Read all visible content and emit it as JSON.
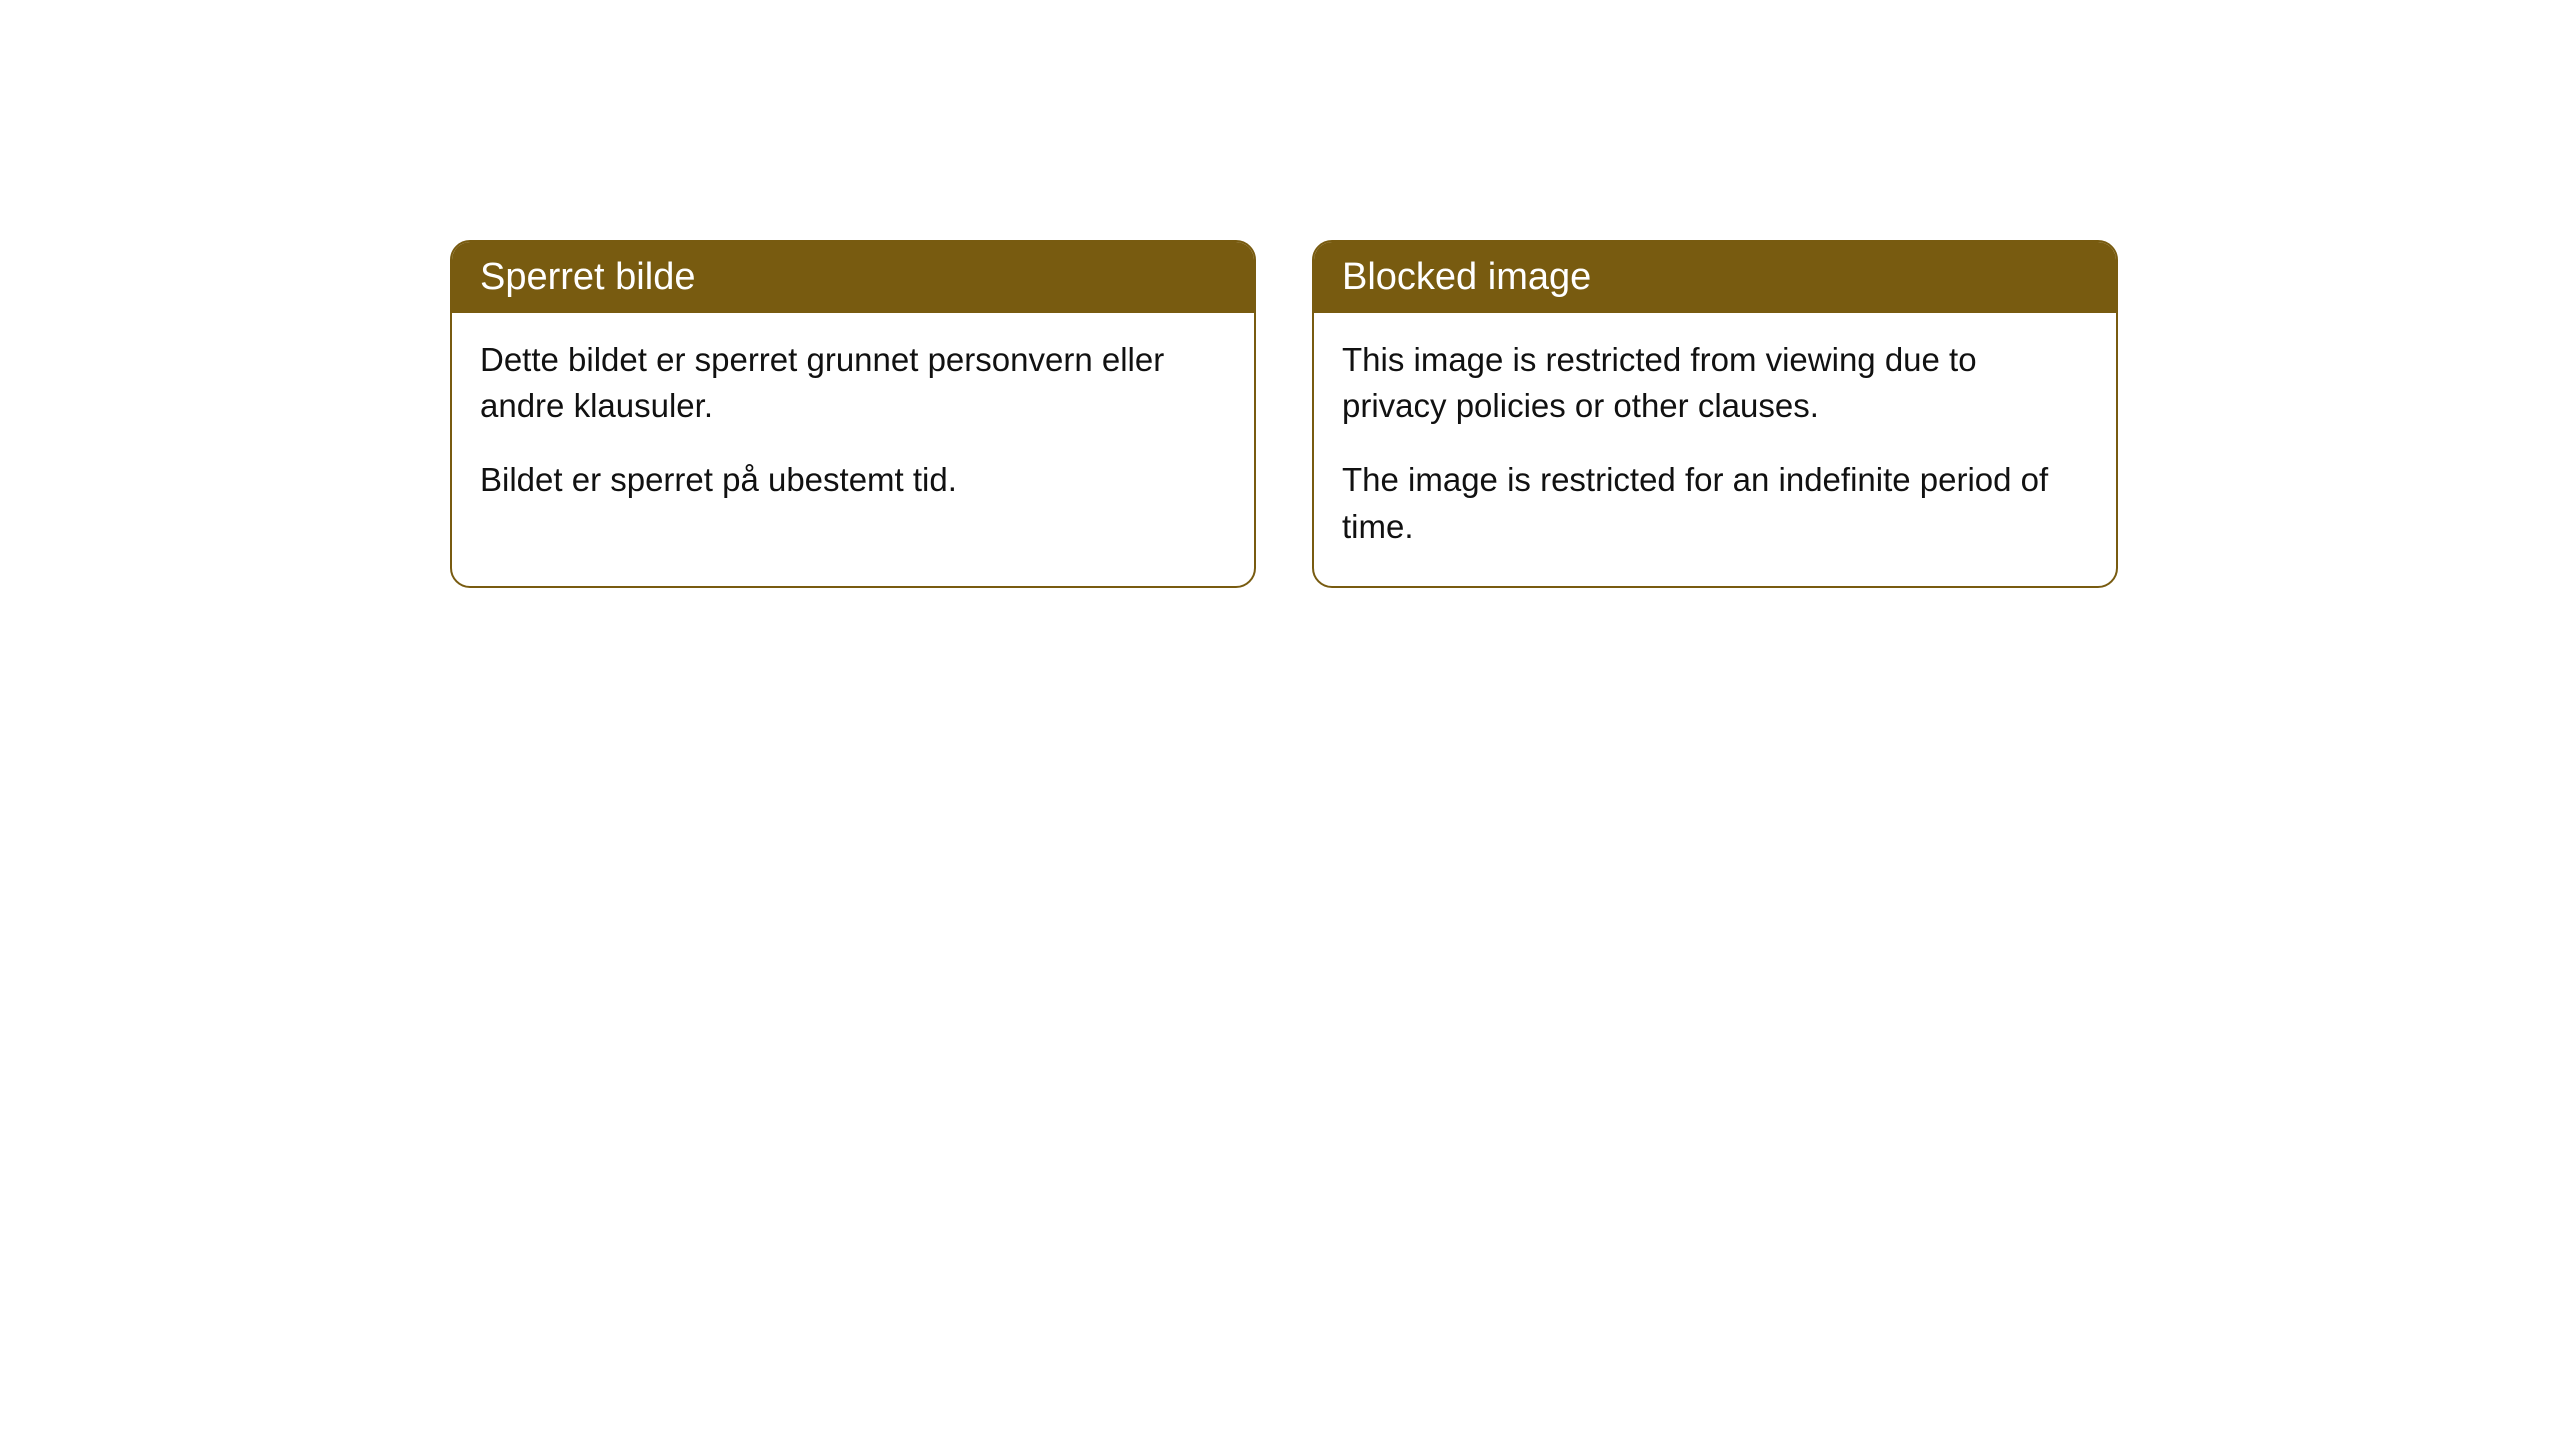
{
  "cards": [
    {
      "header": "Sperret bilde",
      "paragraph1": "Dette bildet er sperret grunnet personvern eller andre klausuler.",
      "paragraph2": "Bildet er sperret på ubestemt tid."
    },
    {
      "header": "Blocked image",
      "paragraph1": "This image is restricted from viewing due to privacy policies or other clauses.",
      "paragraph2": "The image is restricted for an indefinite period of time."
    }
  ],
  "styling": {
    "header_background_color": "#785b10",
    "header_text_color": "#ffffff",
    "border_color": "#785b10",
    "body_background_color": "#ffffff",
    "body_text_color": "#111111",
    "header_fontsize": 38,
    "body_fontsize": 33,
    "border_radius": 20
  }
}
